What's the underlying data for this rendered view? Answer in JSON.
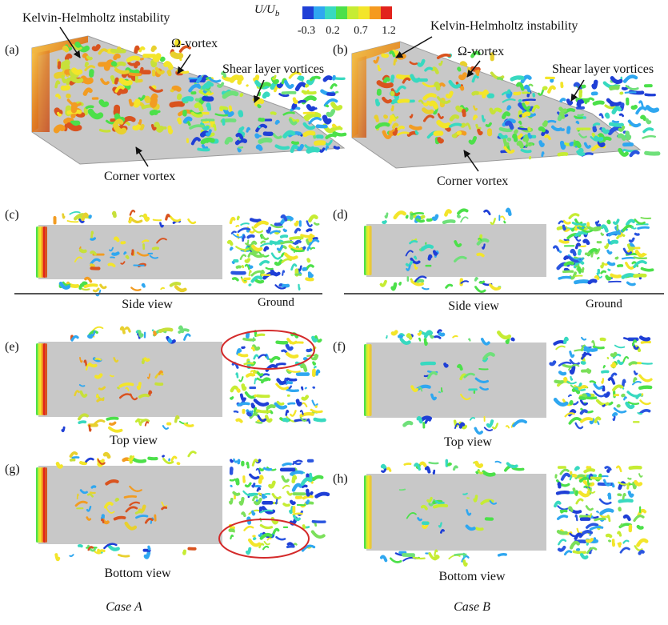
{
  "colorbar": {
    "title_main": "U/U",
    "title_sub": "b",
    "ticks": [
      "-0.3",
      "0.2",
      "0.7",
      "1.2"
    ],
    "colors": [
      "#1f3fd6",
      "#2fa7f0",
      "#38d9c0",
      "#4ce04a",
      "#c6ec33",
      "#f3e52a",
      "#f59a1f",
      "#e2231c"
    ]
  },
  "panels": {
    "a": {
      "label": "(a)",
      "annotations": {
        "kh": "Kelvin-Helmholtz instability",
        "omega": "Ω-vortex",
        "shear": "Shear layer vortices",
        "corner": "Corner vortex"
      }
    },
    "b": {
      "label": "(b)",
      "annotations": {
        "kh": "Kelvin-Helmholtz instability",
        "omega": "Ω-vortex",
        "shear": "Shear layer vortices",
        "corner": "Corner vortex"
      }
    },
    "c": {
      "label": "(c)",
      "caption": "Side view",
      "ground": "Ground"
    },
    "d": {
      "label": "(d)",
      "caption": "Side view",
      "ground": "Ground"
    },
    "e": {
      "label": "(e)",
      "caption": "Top view"
    },
    "f": {
      "label": "(f)",
      "caption": "Top view"
    },
    "g": {
      "label": "(g)",
      "caption": "Bottom view"
    },
    "h": {
      "label": "(h)",
      "caption": "Bottom view"
    }
  },
  "cases": {
    "left": "Case A",
    "right": "Case B"
  },
  "highlight_color": "#d42a2a",
  "body_color": "#c8c8c8"
}
